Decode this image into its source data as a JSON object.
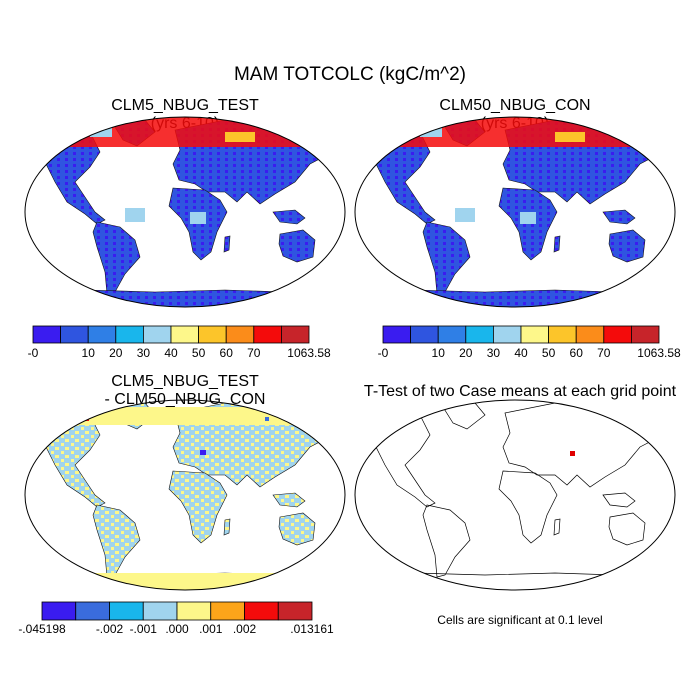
{
  "title": "MAM TOTCOLC (kgC/m^2)",
  "panels": [
    {
      "id": "test",
      "title_line1": "CLM5_NBUG_TEST",
      "title_line2": "(yrs 6-10)"
    },
    {
      "id": "control",
      "title_line1": "CLM50_NBUG_CON",
      "title_line2": "(yrs 6-10)"
    },
    {
      "id": "difference",
      "title_line1": "CLM5_NBUG_TEST",
      "title_line2": "- CLM50_NBUG_CON"
    },
    {
      "id": "ttest",
      "title_line1": "T-Test of two Case means at each grid point",
      "title_line2": "",
      "note": "Cells are significant at 0.1 level",
      "significant_color": "#e00000"
    }
  ],
  "colorbar_main": {
    "colors": [
      "#3a1cf0",
      "#2f55e0",
      "#2f7fe6",
      "#19b6ec",
      "#a0d4ee",
      "#fdf78a",
      "#fcc52a",
      "#fb8c1a",
      "#f40b0b",
      "#c7242a"
    ],
    "labels": [
      "-0",
      "10",
      "20",
      "30",
      "40",
      "50",
      "60",
      "70",
      "1063.58"
    ]
  },
  "colorbar_diff": {
    "colors": [
      "#3a1cf0",
      "#3a6cdd",
      "#19b6ec",
      "#a0d4ee",
      "#fdf78a",
      "#fca51a",
      "#f40b0b",
      "#c7242a"
    ],
    "labels": [
      "-.045198",
      "-.002",
      "-.001",
      ".000",
      ".001",
      ".002",
      ".013161"
    ]
  }
}
